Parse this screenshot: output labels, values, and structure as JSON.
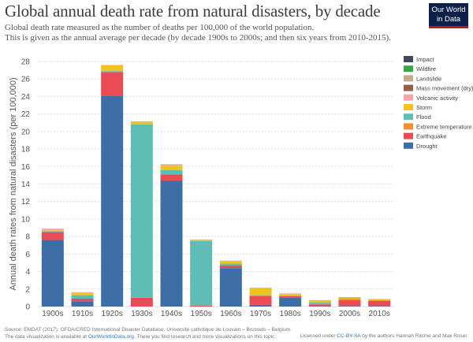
{
  "header": {
    "title": "Global annual death rate from natural disasters, by decade",
    "subtitle_line1": "Global death rate measured as the number of deaths per 100,000 of the world population.",
    "subtitle_line2": "This is given as the annual average per decade (by decade 1900s to 2000s; and then six years from 2010-2015).",
    "logo_line1": "Our World",
    "logo_line2": "in Data"
  },
  "footer": {
    "source": "Source: EMDAT (2017): OFDA/CRED International Disaster Database, Université catholique de Louvain – Brussels – Belgium.",
    "note_prefix": "The data visualization is available at",
    "note_link": "OurWorldInData.org",
    "note_suffix": ". There you find research and more visualizations on this topic.",
    "license_prefix": "Licensed under",
    "license_link": "CC-BY-SA",
    "license_suffix": "by the authors Hannah Ritchie and Max Roser."
  },
  "chart_data": {
    "type": "bar",
    "stacked": true,
    "title": "Global annual death rate from natural disasters, by decade",
    "xlabel": "",
    "ylabel": "Annual death rates from natural disasters (per 100,000)",
    "ylim": [
      0,
      28
    ],
    "yticks": [
      0,
      2,
      4,
      6,
      8,
      10,
      12,
      14,
      16,
      18,
      20,
      22,
      24,
      26,
      28
    ],
    "categories": [
      "1900s",
      "1910s",
      "1920s",
      "1930s",
      "1940s",
      "1950s",
      "1960s",
      "1970s",
      "1980s",
      "1990s",
      "2000s",
      "2010s"
    ],
    "legend_position": "right",
    "series": [
      {
        "name": "Drought",
        "color": "#3d6fa6",
        "values": [
          7.6,
          0.6,
          24.1,
          0,
          14.4,
          0,
          4.4,
          0.2,
          1.0,
          0.05,
          0.05,
          0.05
        ]
      },
      {
        "name": "Earthquake",
        "color": "#ea4b55",
        "values": [
          0.9,
          0.3,
          2.7,
          1.0,
          0.7,
          0.1,
          0.3,
          1.0,
          0.2,
          0.2,
          0.7,
          0.6
        ]
      },
      {
        "name": "Extreme temperature",
        "color": "#f58d37",
        "values": [
          0,
          0,
          0,
          0,
          0,
          0,
          0,
          0,
          0,
          0.1,
          0.1,
          0.03
        ]
      },
      {
        "name": "Flood",
        "color": "#5fbdb6",
        "values": [
          0.1,
          0.4,
          0.1,
          19.8,
          0.5,
          7.4,
          0.2,
          0.1,
          0.05,
          0.1,
          0.05,
          0.05
        ]
      },
      {
        "name": "Storm",
        "color": "#f0c41d",
        "values": [
          0.1,
          0.3,
          0.7,
          0.3,
          0.5,
          0.1,
          0.3,
          0.8,
          0.15,
          0.25,
          0.15,
          0.1
        ]
      },
      {
        "name": "Volcanic activity",
        "color": "#f5a3ad",
        "values": [
          0.2,
          0.05,
          0,
          0,
          0.05,
          0,
          0,
          0,
          0.05,
          0,
          0,
          0
        ]
      },
      {
        "name": "Mass movement (dry)",
        "color": "#9b5d47",
        "values": [
          0,
          0,
          0,
          0,
          0,
          0,
          0,
          0,
          0,
          0,
          0,
          0
        ]
      },
      {
        "name": "Landslide",
        "color": "#c4a98e",
        "values": [
          0,
          0,
          0,
          0.05,
          0.1,
          0.05,
          0.05,
          0.05,
          0.05,
          0.03,
          0.03,
          0.03
        ]
      },
      {
        "name": "Wildfire",
        "color": "#3aa648",
        "values": [
          0,
          0,
          0,
          0,
          0,
          0,
          0,
          0,
          0,
          0,
          0,
          0
        ]
      },
      {
        "name": "Impact",
        "color": "#3f4a5e",
        "values": [
          0,
          0,
          0,
          0,
          0,
          0,
          0,
          0,
          0,
          0,
          0,
          0
        ]
      }
    ],
    "legend_order": [
      "Impact",
      "Wildfire",
      "Landslide",
      "Mass movement (dry)",
      "Volcanic activity",
      "Storm",
      "Flood",
      "Extreme temperature",
      "Earthquake",
      "Drought"
    ]
  }
}
